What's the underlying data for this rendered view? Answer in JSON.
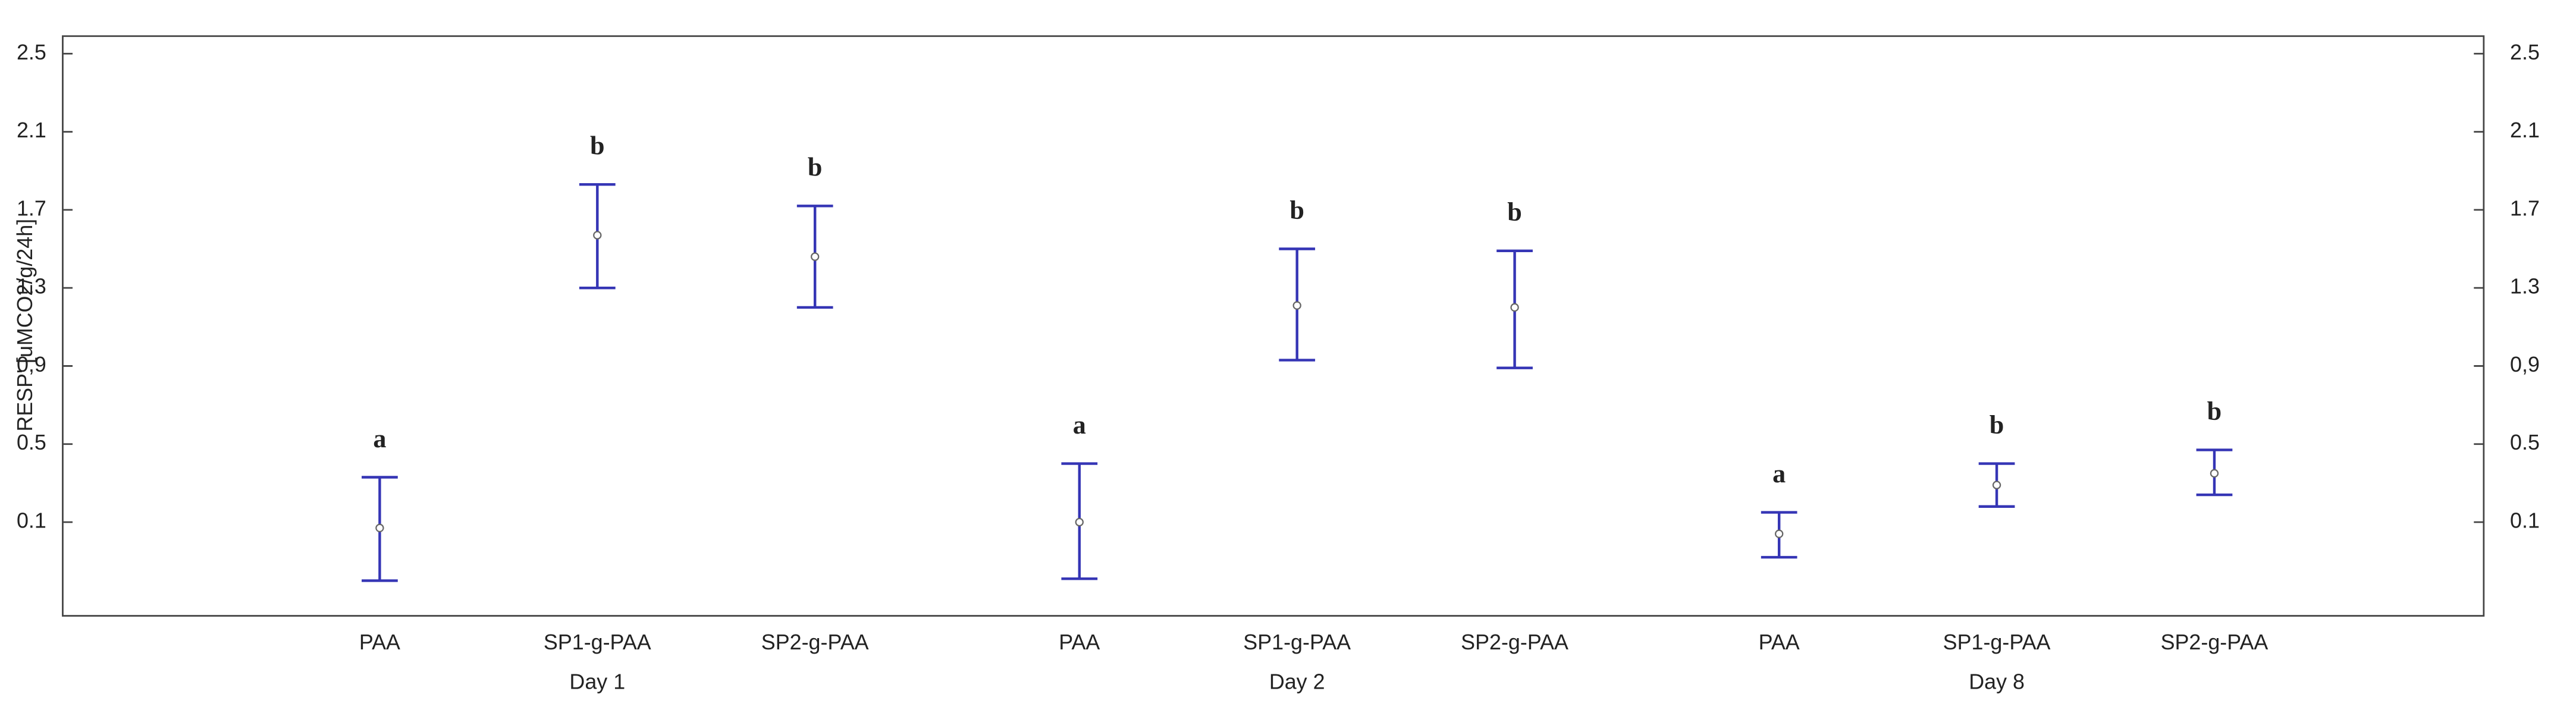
{
  "chart_data": {
    "type": "errorbar",
    "y_label": "RESP' [uMCO2/g/24h]",
    "groups": [
      "Day 1",
      "Day 2",
      "Day 8"
    ],
    "categories": [
      "PAA",
      "SP1-g-PAA",
      "SP2-g-PAA",
      "PAA",
      "SP1-g-PAA",
      "SP2-g-PAA",
      "PAA",
      "SP1-g-PAA",
      "SP2-g-PAA"
    ],
    "series": [
      {
        "color": "#3535b5",
        "values": [
          0.07,
          1.57,
          1.46,
          0.1,
          1.21,
          1.2,
          0.04,
          0.29,
          0.35
        ],
        "lower": [
          -0.2,
          1.3,
          1.2,
          -0.19,
          0.93,
          0.89,
          -0.08,
          0.18,
          0.24
        ],
        "upper": [
          0.33,
          1.83,
          1.72,
          0.4,
          1.5,
          1.49,
          0.15,
          0.4,
          0.47
        ],
        "labels": [
          "a",
          "b",
          "b",
          "a",
          "b",
          "b",
          "a",
          "b",
          "b"
        ]
      }
    ],
    "ylim": [
      -0.38,
      2.59
    ],
    "yticks": [
      0.1,
      0.5,
      {
        "value": 0.9,
        "label": "0,9"
      },
      1.3,
      1.7,
      2.1,
      2.5
    ],
    "y2lim": [
      -0.38,
      2.59
    ],
    "y2ticks": [
      0.1,
      0.5,
      {
        "value": 0.9,
        "label": "0,9"
      },
      1.3,
      1.7,
      2.1,
      2.5
    ]
  }
}
